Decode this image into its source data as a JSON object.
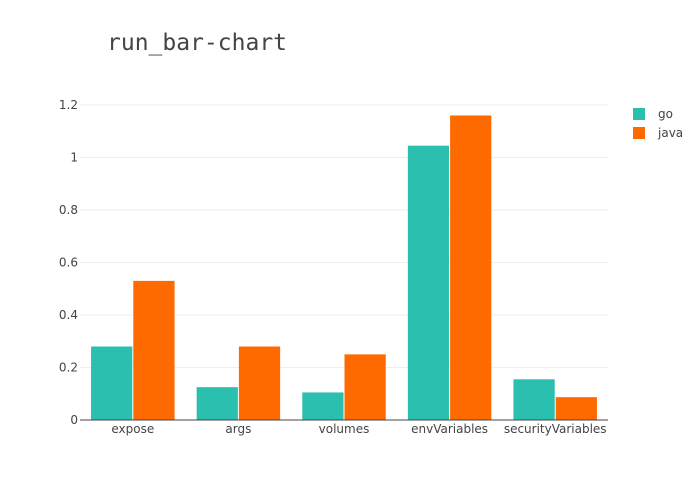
{
  "chart_data": {
    "type": "bar",
    "title": "run_bar-chart",
    "categories": [
      "expose",
      "args",
      "volumes",
      "envVariables",
      "securityVariables"
    ],
    "series": [
      {
        "name": "go",
        "color": "#2bbfb0",
        "values": [
          0.28,
          0.125,
          0.105,
          1.045,
          0.155
        ]
      },
      {
        "name": "java",
        "color": "#ff6a00",
        "values": [
          0.53,
          0.28,
          0.25,
          1.16,
          0.087
        ]
      }
    ],
    "ylim": [
      0,
      1.2
    ],
    "yticks": [
      "0",
      "0.2",
      "0.4",
      "0.6",
      "0.8",
      "1",
      "1.2"
    ],
    "grid": true,
    "legend_position": "top-right"
  }
}
